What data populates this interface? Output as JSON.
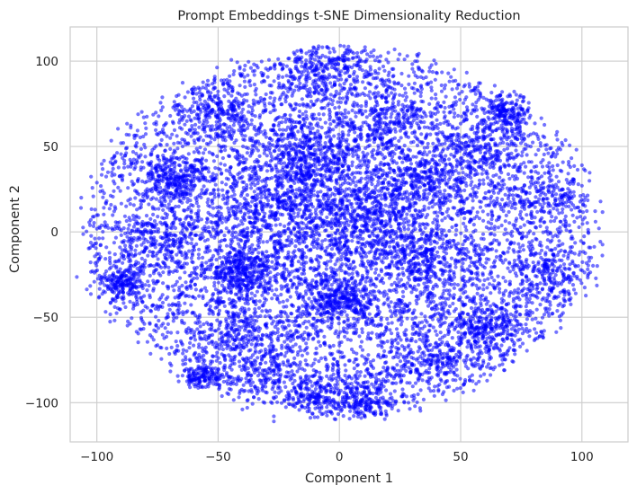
{
  "chart_data": {
    "type": "scatter",
    "title": "Prompt Embeddings t-SNE Dimensionality Reduction",
    "xlabel": "Component 1",
    "ylabel": "Component 2",
    "xlim": [
      -111,
      119
    ],
    "ylim": [
      -123,
      120
    ],
    "xticks": [
      -100,
      -50,
      0,
      50,
      100
    ],
    "yticks": [
      -100,
      -50,
      0,
      50,
      100
    ],
    "grid": true,
    "legend": "none",
    "point_color": "#0000ff",
    "point_opacity": 0.55,
    "grid_color": "#cccccc",
    "axes_edge_color": "#cccccc",
    "distribution": {
      "shape": "roughly circular cloud",
      "center": [
        0,
        0
      ],
      "radius_x": 105,
      "radius_y": 105,
      "approx_point_count": 12000
    },
    "clusters": [
      {
        "x": -13,
        "y": 45,
        "spread": 12,
        "weight": 1.6
      },
      {
        "x": -40,
        "y": -23,
        "spread": 8,
        "weight": 1.3
      },
      {
        "x": 0,
        "y": -40,
        "spread": 7,
        "weight": 1.1
      },
      {
        "x": -68,
        "y": 30,
        "spread": 7,
        "weight": 0.9
      },
      {
        "x": 70,
        "y": 70,
        "spread": 5,
        "weight": 0.6
      },
      {
        "x": -57,
        "y": -85,
        "spread": 4,
        "weight": 0.5
      },
      {
        "x": 60,
        "y": -55,
        "spread": 7,
        "weight": 0.8
      },
      {
        "x": 10,
        "y": -97,
        "spread": 7,
        "weight": 0.8
      },
      {
        "x": -90,
        "y": -30,
        "spread": 5,
        "weight": 0.6
      },
      {
        "x": -10,
        "y": -95,
        "spread": 6,
        "weight": 0.6
      },
      {
        "x": -5,
        "y": 95,
        "spread": 10,
        "weight": 0.9
      },
      {
        "x": 38,
        "y": 30,
        "spread": 9,
        "weight": 0.8
      },
      {
        "x": 35,
        "y": -15,
        "spread": 10,
        "weight": 0.8
      },
      {
        "x": -50,
        "y": 70,
        "spread": 8,
        "weight": 0.7
      },
      {
        "x": 85,
        "y": 20,
        "spread": 9,
        "weight": 0.5
      },
      {
        "x": -25,
        "y": 15,
        "spread": 12,
        "weight": 1.0
      },
      {
        "x": 15,
        "y": 10,
        "spread": 12,
        "weight": 1.0
      },
      {
        "x": 60,
        "y": 50,
        "spread": 8,
        "weight": 0.6
      },
      {
        "x": -40,
        "y": -60,
        "spread": 9,
        "weight": 0.6
      },
      {
        "x": 85,
        "y": -25,
        "spread": 8,
        "weight": 0.5
      },
      {
        "x": 20,
        "y": 65,
        "spread": 9,
        "weight": 0.7
      },
      {
        "x": -75,
        "y": -5,
        "spread": 8,
        "weight": 0.6
      },
      {
        "x": -30,
        "y": -80,
        "spread": 8,
        "weight": 0.5
      },
      {
        "x": 40,
        "y": -75,
        "spread": 8,
        "weight": 0.6
      }
    ],
    "outliers": [
      {
        "x": -40,
        "y": -104
      },
      {
        "x": -38,
        "y": -103
      },
      {
        "x": -27,
        "y": -111
      },
      {
        "x": -27,
        "y": -108
      },
      {
        "x": 9,
        "y": -109
      },
      {
        "x": 107,
        "y": 2
      },
      {
        "x": 100,
        "y": 39
      },
      {
        "x": -99,
        "y": -38
      },
      {
        "x": -100,
        "y": -13
      },
      {
        "x": 57,
        "y": 85
      },
      {
        "x": 28,
        "y": 103
      },
      {
        "x": -5,
        "y": 108
      },
      {
        "x": 103,
        "y": -17
      },
      {
        "x": 100,
        "y": 27
      },
      {
        "x": 95,
        "y": -40
      }
    ]
  }
}
